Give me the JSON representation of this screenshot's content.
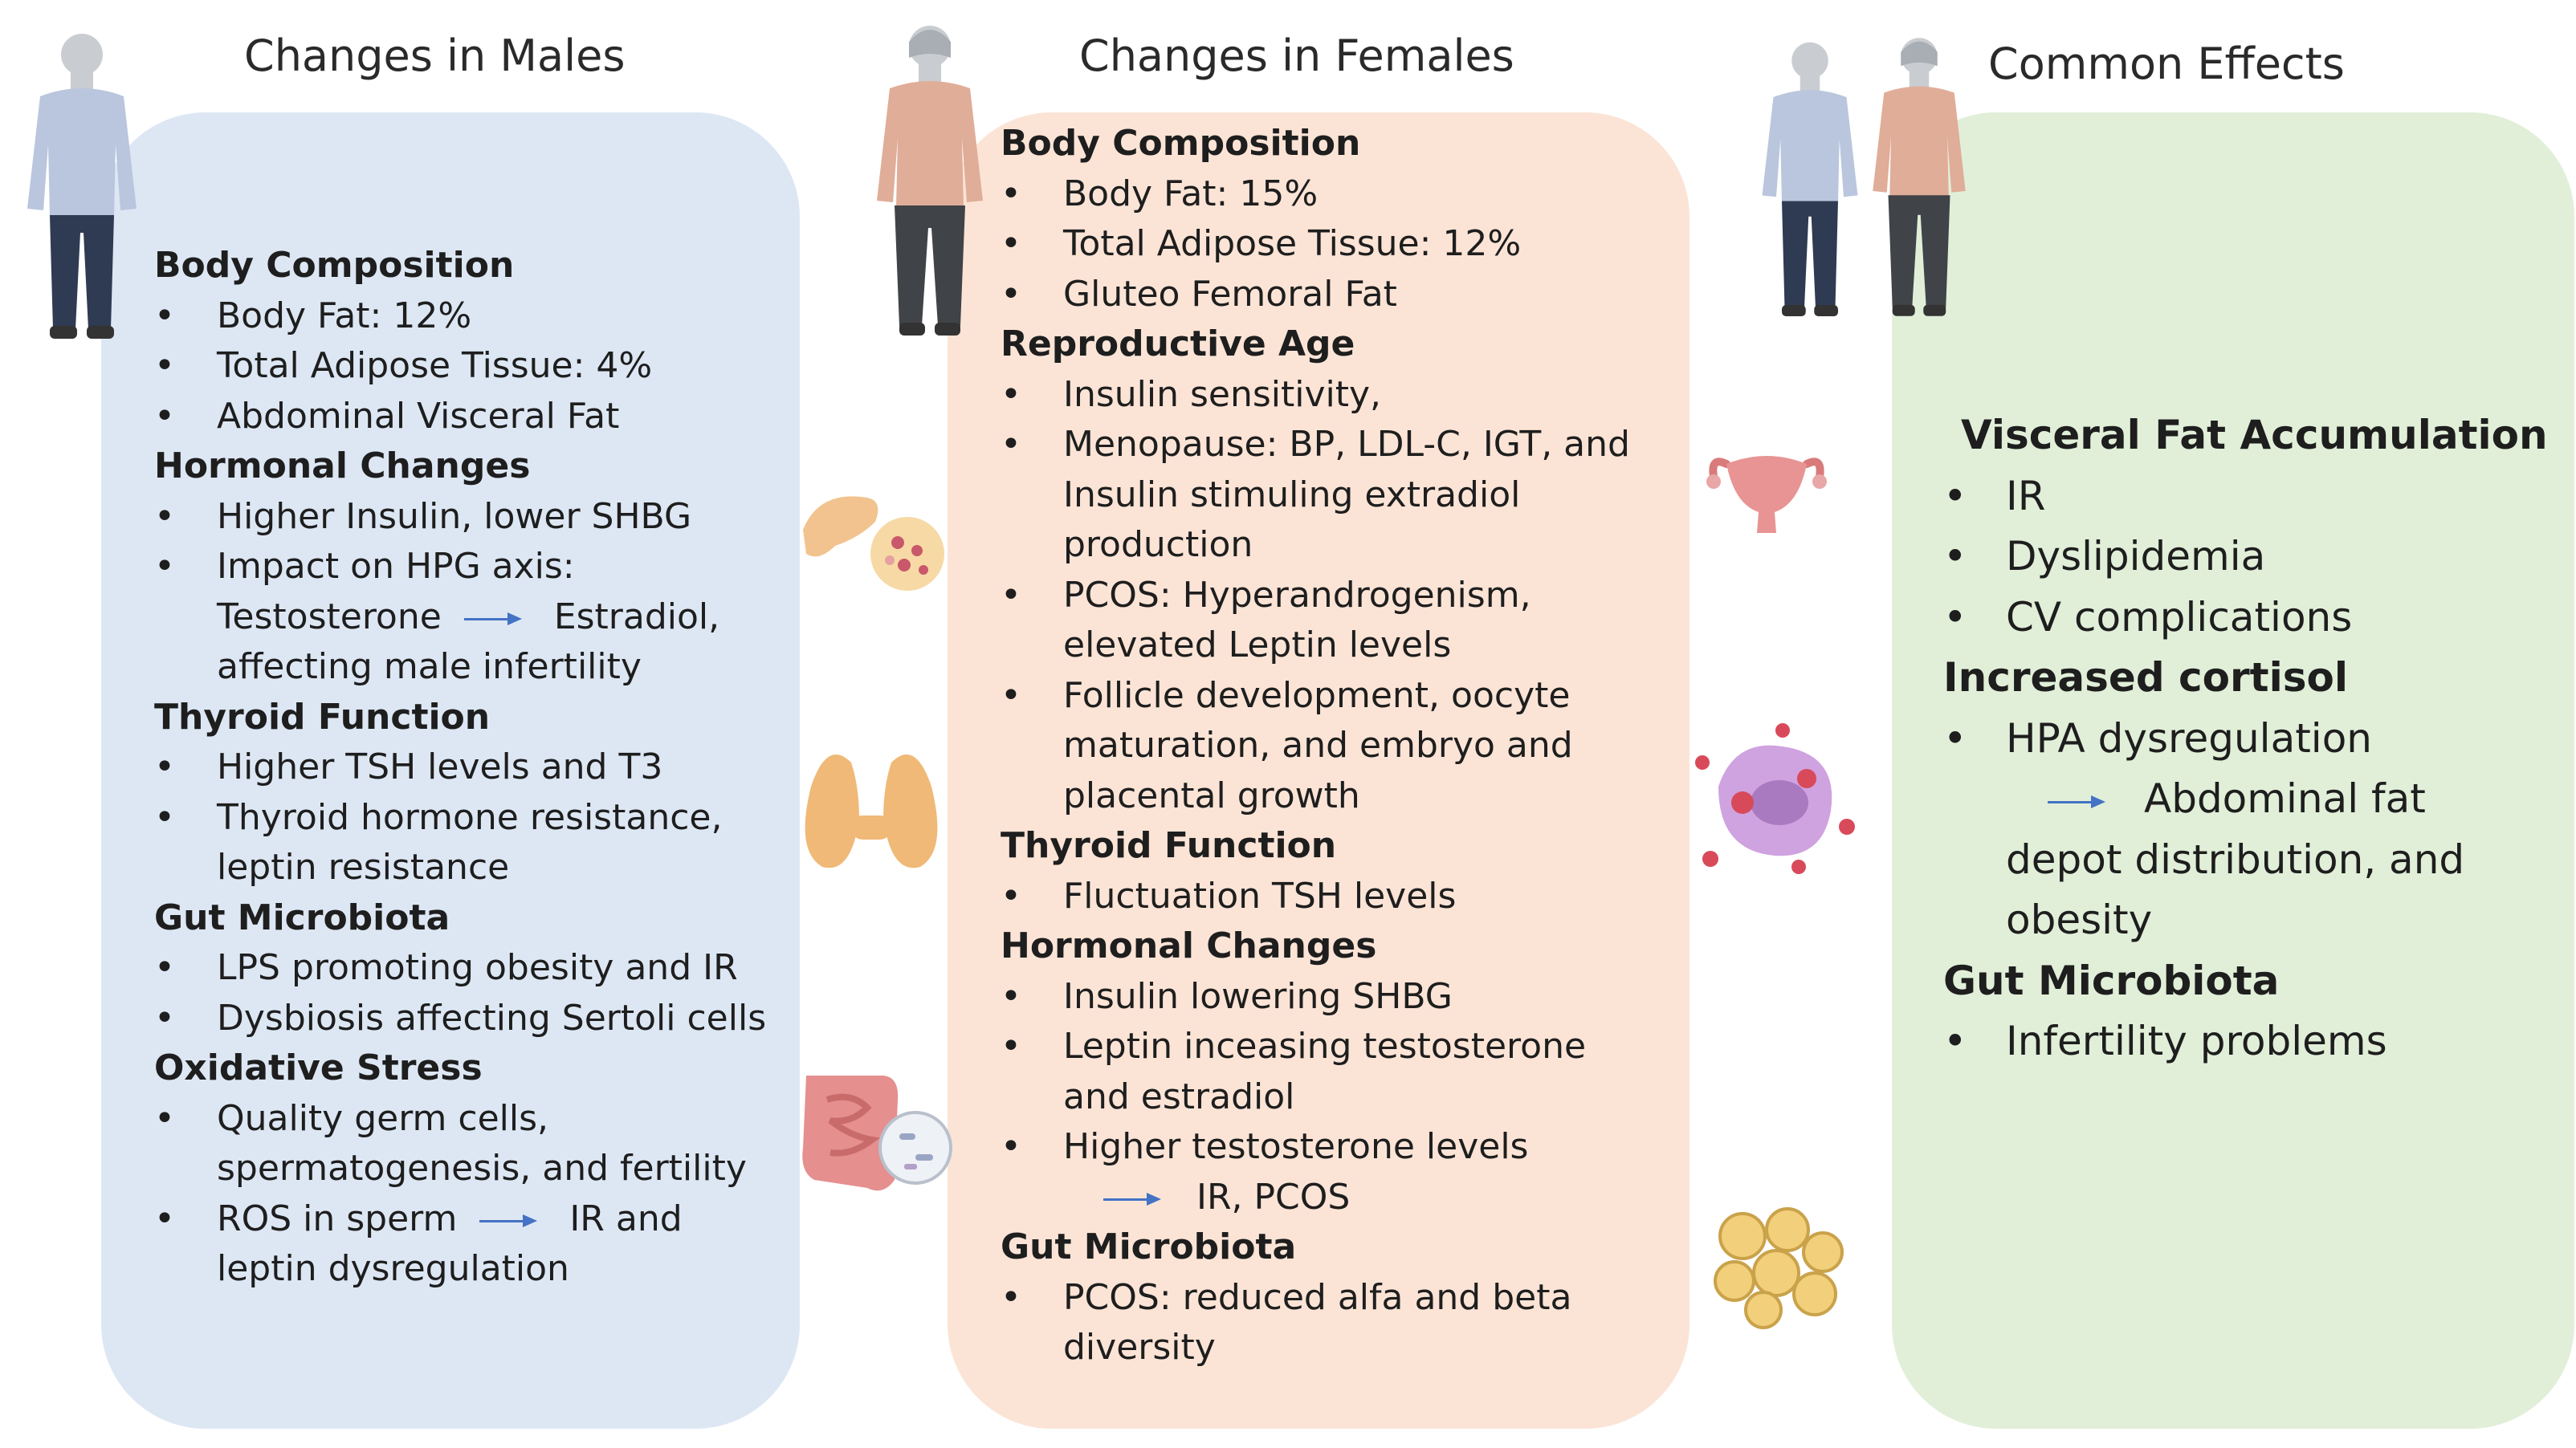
{
  "headings": {
    "males": "Changes in Males",
    "females": "Changes in Females",
    "common": "Common Effects"
  },
  "icons": [
    "male-figure-icon",
    "female-figure-icon",
    "pancreas-icon",
    "thyroid-icon",
    "intestine-icon",
    "uterus-icon",
    "cell-icon",
    "adipocytes-icon",
    "arrow-icon"
  ],
  "colors": {
    "male_panel": "#dde7f4",
    "female_panel": "#fbe4d6",
    "common_panel": "#e1efd9",
    "arrow": "#4472c4"
  },
  "males": {
    "body_composition": {
      "title": "Body Composition",
      "items": [
        "Body Fat: 12%",
        "Total Adipose Tissue: 4%",
        "Abdominal Visceral Fat"
      ]
    },
    "hormonal_changes": {
      "title": "Hormonal Changes",
      "item1": "Higher Insulin, lower SHBG",
      "item2_line1": "Impact on HPG axis:",
      "item2_pre": "Testosterone",
      "item2_post": "Estradiol,",
      "item2_line3": "affecting male infertility"
    },
    "thyroid_function": {
      "title": "Thyroid Function",
      "item1": "Higher TSH levels and T3",
      "item2_line1": "Thyroid hormone resistance,",
      "item2_line2": "leptin resistance"
    },
    "gut_microbiota": {
      "title": "Gut Microbiota",
      "items": [
        "LPS promoting obesity and IR",
        "Dysbiosis affecting Sertoli cells"
      ]
    },
    "oxidative_stress": {
      "title": "Oxidative Stress",
      "item1_line1": "Quality germ cells,",
      "item1_line2": "spermatogenesis, and fertility",
      "item2_pre": "ROS in sperm",
      "item2_post": "IR and",
      "item2_line2": "leptin dysregulation"
    }
  },
  "females": {
    "body_composition": {
      "title": "Body Composition",
      "items": [
        "Body Fat: 15%",
        "Total Adipose Tissue: 12%",
        "Gluteo Femoral Fat"
      ]
    },
    "reproductive_age": {
      "title": "Reproductive Age",
      "item1": "Insulin sensitivity,",
      "item2_line1": "Menopause: BP, LDL-C, IGT, and",
      "item2_line2": "Insulin stimuling extradiol",
      "item2_line3": "production",
      "item3_line1": "PCOS: Hyperandrogenism,",
      "item3_line2": "elevated Leptin levels",
      "item4_line1": "Follicle development, oocyte",
      "item4_line2": "maturation, and embryo and",
      "item4_line3": "placental growth"
    },
    "thyroid_function": {
      "title": "Thyroid Function",
      "item1": "Fluctuation TSH levels"
    },
    "hormonal_changes": {
      "title": "Hormonal Changes",
      "item1": "Insulin lowering SHBG",
      "item2_line1": "Leptin inceasing testosterone",
      "item2_line2": "and estradiol",
      "item3": "Higher testosterone levels",
      "item3_result": "IR, PCOS"
    },
    "gut_microbiota": {
      "title": "Gut Microbiota",
      "item1_line1": "PCOS: reduced alfa and beta",
      "item1_line2": "diversity"
    }
  },
  "common": {
    "visceral_fat": {
      "title": "Visceral Fat Accumulation",
      "items": [
        "IR",
        "Dyslipidemia",
        "CV complications"
      ]
    },
    "cortisol": {
      "title": "Increased cortisol",
      "item1": "HPA dysregulation",
      "item1_result": "Abdominal fat",
      "item1_line3": "depot distribution, and",
      "item1_line4": "obesity"
    },
    "gut_microbiota": {
      "title": "Gut Microbiota",
      "item1": "Infertility problems"
    }
  }
}
